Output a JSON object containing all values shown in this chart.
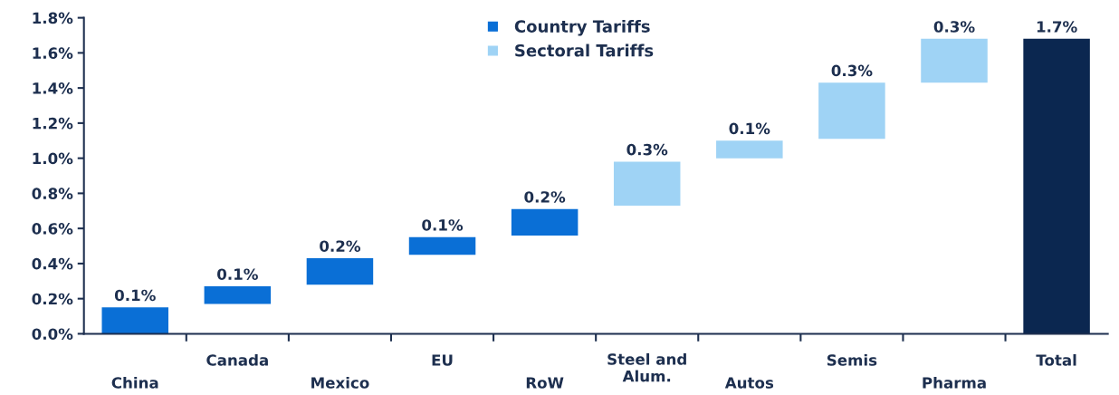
{
  "chart_data": {
    "type": "bar",
    "categories": [
      "China",
      "Canada",
      "Mexico",
      "EU",
      "RoW",
      "Steel and\nAlum.",
      "Autos",
      "Semis",
      "Pharma",
      "Total"
    ],
    "series": [
      {
        "name": "Country Tariffs",
        "color": "#0a6fd6",
        "values": [
          0.15,
          0.1,
          0.15,
          0.1,
          0.15,
          null,
          null,
          null,
          null,
          null
        ],
        "base": [
          0,
          0.17,
          0.28,
          0.45,
          0.56,
          null,
          null,
          null,
          null,
          null
        ],
        "value_labels": [
          "0.1%",
          "0.1%",
          "0.2%",
          "0.1%",
          "0.2%",
          null,
          null,
          null,
          null,
          null
        ]
      },
      {
        "name": "Sectoral Tariffs",
        "color": "#9fd3f5",
        "values": [
          null,
          null,
          null,
          null,
          null,
          0.25,
          0.1,
          0.32,
          0.25,
          null
        ],
        "base": [
          null,
          null,
          null,
          null,
          null,
          0.73,
          1.0,
          1.11,
          1.43,
          null
        ],
        "value_labels": [
          null,
          null,
          null,
          null,
          null,
          "0.3%",
          "0.1%",
          "0.3%",
          "0.3%",
          null
        ]
      },
      {
        "color": "#0b2750",
        "values": [
          null,
          null,
          null,
          null,
          null,
          null,
          null,
          null,
          null,
          1.68
        ],
        "base": [
          null,
          null,
          null,
          null,
          null,
          null,
          null,
          null,
          null,
          0
        ],
        "value_labels": [
          null,
          null,
          null,
          null,
          null,
          null,
          null,
          null,
          null,
          "1.7%"
        ]
      }
    ],
    "ylim": [
      0,
      1.8
    ],
    "yticks": [
      {
        "value": 0,
        "label": "0.0%"
      },
      {
        "value": 0.2,
        "label": "0.2%"
      },
      {
        "value": 0.4,
        "label": "0.4%"
      },
      {
        "value": 0.6,
        "label": "0.6%"
      },
      {
        "value": 0.8,
        "label": "0.8%"
      },
      {
        "value": 1.0,
        "label": "1.0%"
      },
      {
        "value": 1.2,
        "label": "1.2%"
      },
      {
        "value": 1.4,
        "label": "1.4%"
      },
      {
        "value": 1.6,
        "label": "1.6%"
      },
      {
        "value": 1.8,
        "label": "1.8%"
      }
    ],
    "legend": "top",
    "grid": false
  }
}
